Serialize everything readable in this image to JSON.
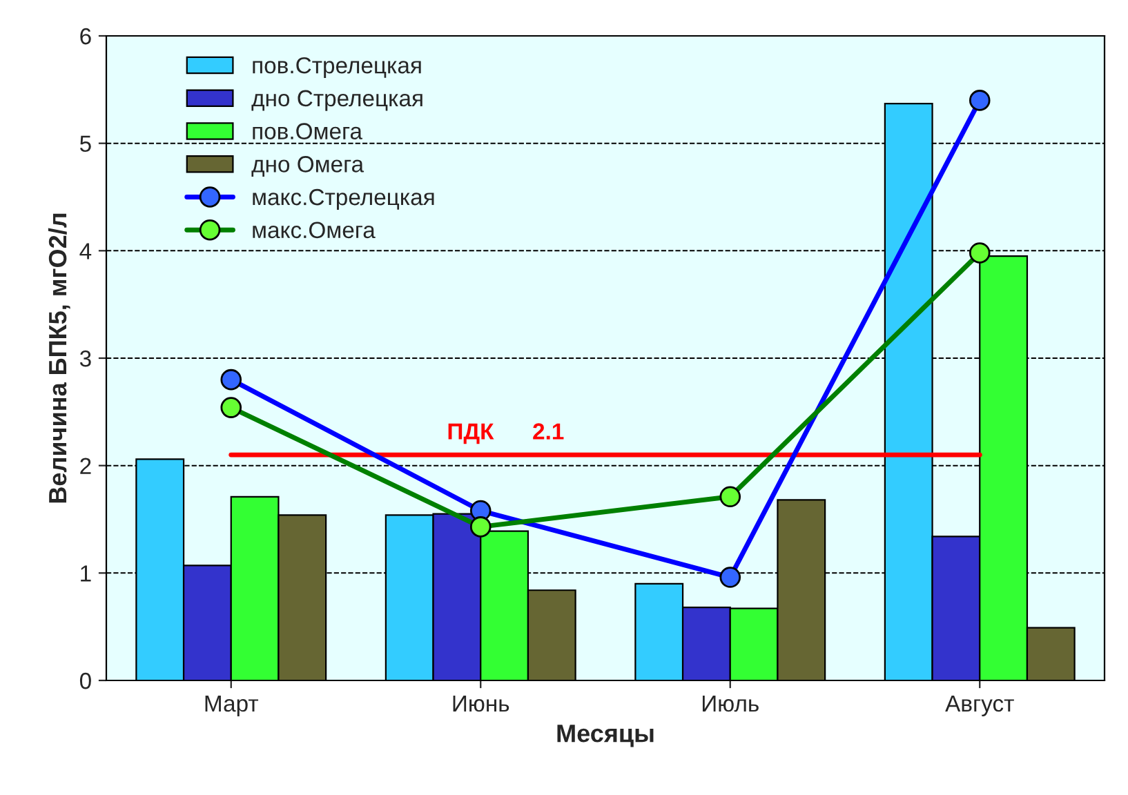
{
  "chart_data": {
    "type": "bar",
    "xlabel": "Месяцы",
    "ylabel": "Величина БПК5, мгО2/л",
    "categories": [
      "Март",
      "Июнь",
      "Июль",
      "Август"
    ],
    "series": [
      {
        "name": "пов.Стрелецкая",
        "color": "#33ccff",
        "values": [
          2.06,
          1.54,
          0.9,
          5.37
        ]
      },
      {
        "name": "дно Стрелецкая",
        "color": "#3333cc",
        "values": [
          1.07,
          1.55,
          0.68,
          1.34
        ]
      },
      {
        "name": "пов.Омега",
        "color": "#33ff33",
        "values": [
          1.71,
          1.39,
          0.67,
          3.95
        ]
      },
      {
        "name": "дно Омега",
        "color": "#666633",
        "values": [
          1.54,
          0.84,
          1.68,
          0.49
        ]
      },
      {
        "name": "макс.Стрелецкая",
        "type": "line",
        "color": "#0000ff",
        "values": [
          2.8,
          1.58,
          0.96,
          5.4
        ]
      },
      {
        "name": "макс.Омега",
        "type": "line",
        "color": "#008000",
        "values": [
          2.54,
          1.43,
          1.71,
          3.98
        ]
      }
    ],
    "ref_lines": [
      {
        "axis": "y",
        "value": 2.1,
        "label": "ПДК      2.1",
        "color": "#ff0000"
      }
    ],
    "ylim": [
      0,
      6
    ],
    "yticks": [
      0,
      1,
      2,
      3,
      4,
      5,
      6
    ],
    "grid": "y",
    "legend": "top left",
    "marker": "circle"
  }
}
